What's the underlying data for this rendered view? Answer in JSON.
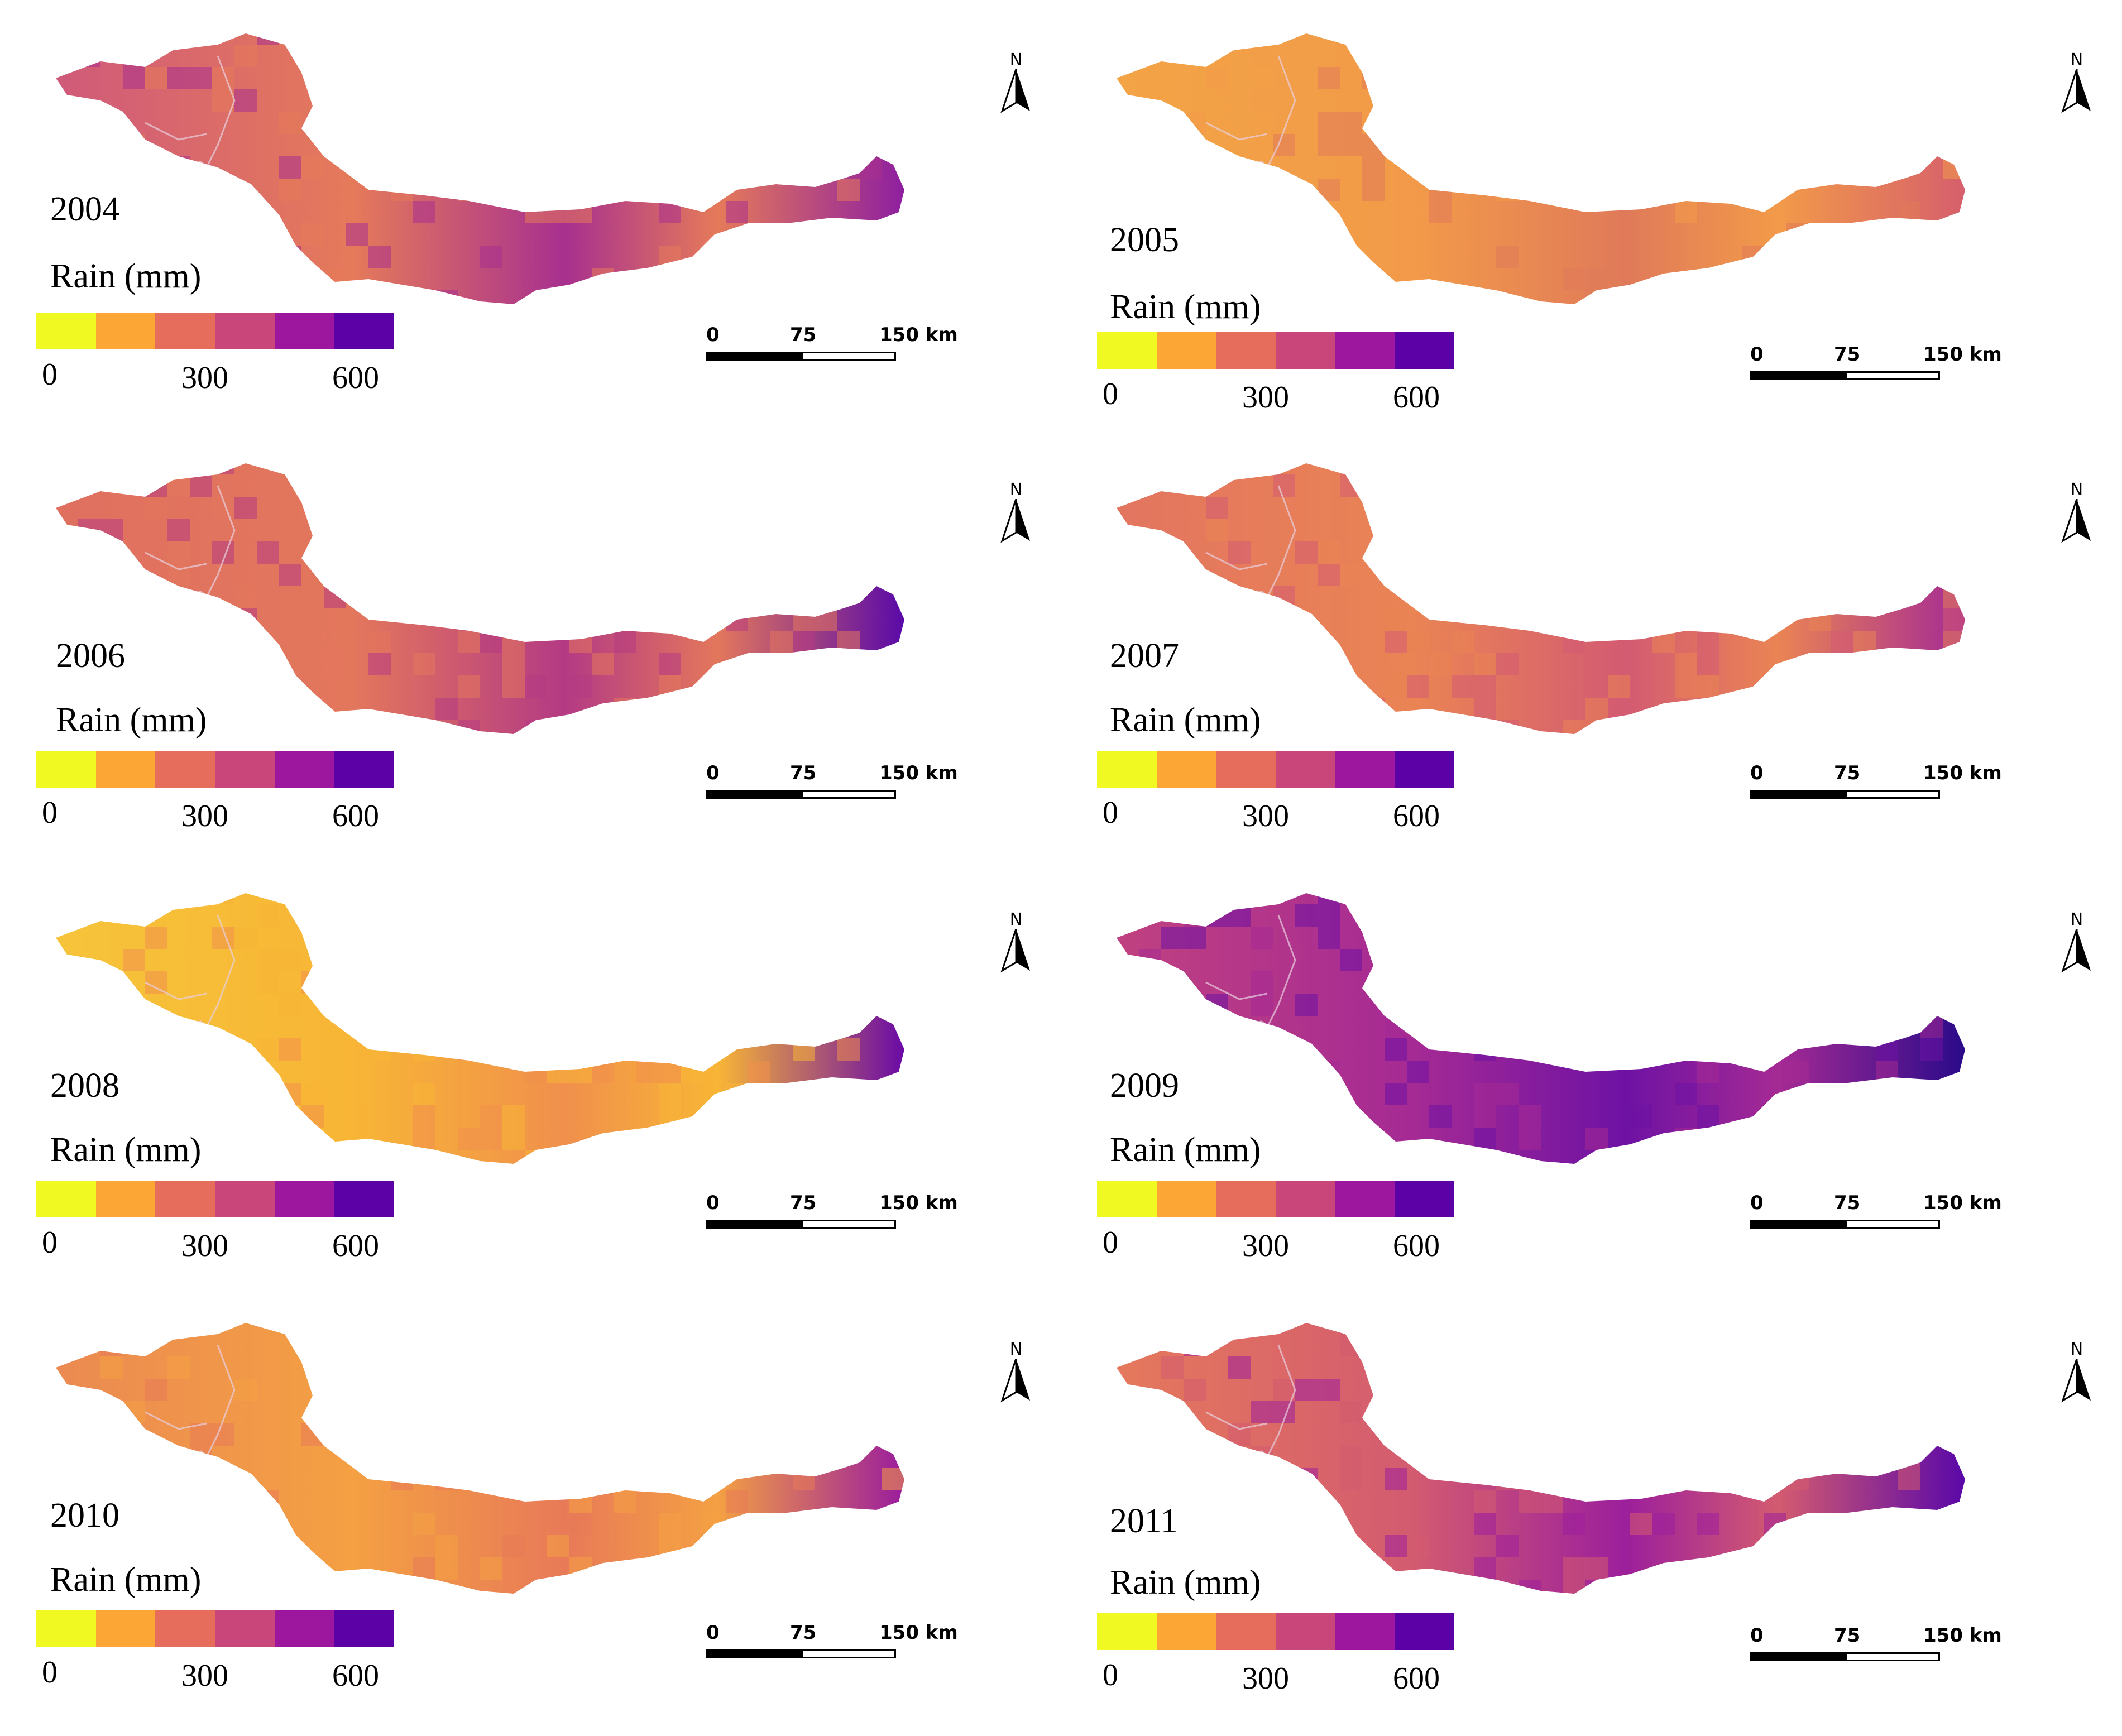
{
  "legend": {
    "title": "Rain (mm)",
    "ticks": [
      "0",
      "300",
      "600"
    ],
    "colors": [
      "#f0f921",
      "#fca636",
      "#e66c5c",
      "#c8467a",
      "#9c179e",
      "#5c01a6"
    ]
  },
  "scale_bar": {
    "labels": [
      "0",
      "75",
      "150 km"
    ]
  },
  "north_arrow": {
    "label": "N",
    "icon": "north-arrow-icon"
  },
  "panels": [
    {
      "year": "2004",
      "base": "#e57a5a",
      "west": "#cf5a7a",
      "east": "#8e1fa0",
      "hot": "#a8308f"
    },
    {
      "year": "2005",
      "base": "#f29a49",
      "west": "#f3a446",
      "east": "#d65f6c",
      "hot": "#e07a5a"
    },
    {
      "year": "2006",
      "base": "#e3775c",
      "west": "#df7060",
      "east": "#5a0aa8",
      "hot": "#b43a84"
    },
    {
      "year": "2007",
      "base": "#ea8454",
      "west": "#e27560",
      "east": "#a52a94",
      "hot": "#d35b72"
    },
    {
      "year": "2008",
      "base": "#f8b536",
      "west": "#f6c43a",
      "east": "#6a0aa6",
      "hot": "#f0904c"
    },
    {
      "year": "2009",
      "base": "#a52a94",
      "west": "#c04180",
      "east": "#2a0a8a",
      "hot": "#6e12a4"
    },
    {
      "year": "2010",
      "base": "#f4a043",
      "west": "#eb8a52",
      "east": "#9a1c9d",
      "hot": "#e87a58"
    },
    {
      "year": "2011",
      "base": "#d35b70",
      "west": "#e5795c",
      "east": "#5a08a8",
      "hot": "#9c1f9c"
    }
  ]
}
